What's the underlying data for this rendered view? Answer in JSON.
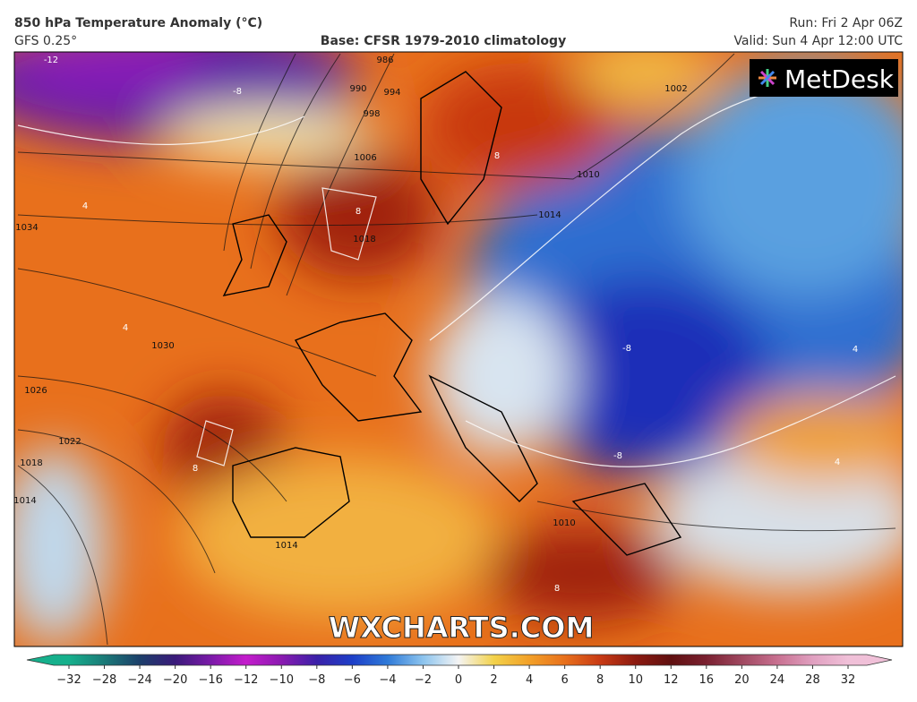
{
  "header": {
    "title": "850 hPa Temperature Anomaly (°C)",
    "model": "GFS 0.25°",
    "base": "Base: CFSR 1979-2010 climatology",
    "run": "Run: Fri 2 Apr 06Z",
    "valid": "Valid: Sun 4 Apr 12:00 UTC"
  },
  "logo": "MetDesk",
  "watermark": "WXCHARTS.COM",
  "pressure_labels": [
    "986",
    "990",
    "994",
    "998",
    "1006",
    "1010",
    "1014",
    "1018",
    "1002",
    "1030",
    "1026",
    "1022",
    "1018",
    "1014",
    "1034",
    "1014",
    "1010"
  ],
  "temperature_labels": [
    "-12",
    "-8",
    "4",
    "8",
    "8",
    "-8",
    "-8",
    "8",
    "8",
    "4",
    "4",
    "4"
  ],
  "colorbar": {
    "ticks": [
      "−32",
      "−28",
      "−24",
      "−20",
      "−16",
      "−12",
      "−10",
      "−8",
      "−6",
      "−4",
      "−2",
      "0",
      "2",
      "4",
      "6",
      "8",
      "10",
      "12",
      "16",
      "20",
      "24",
      "28",
      "32"
    ],
    "colors": [
      "#16b08c",
      "#1b7a78",
      "#1c3f6a",
      "#3a1a7a",
      "#7a1aa8",
      "#c41ccc",
      "#8a1ab0",
      "#3a20a8",
      "#1d3fc8",
      "#2f7ad8",
      "#8cc4ee",
      "#f4f4f4",
      "#f3d24a",
      "#f2a028",
      "#e8701c",
      "#c83a14",
      "#8c1a10",
      "#601010",
      "#7a2030",
      "#a04860",
      "#c87090",
      "#e0a0c0",
      "#f0c0d8"
    ]
  }
}
